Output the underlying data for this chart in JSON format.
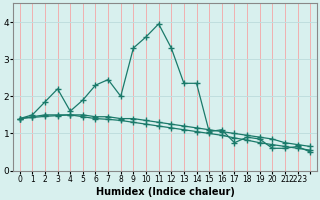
{
  "xlabel": "Humidex (Indice chaleur)",
  "background_color": "#d8f0ee",
  "grid_color_h": "#c0dede",
  "grid_color_v": "#f0b0b0",
  "line_color": "#1a7a6a",
  "xlim": [
    -0.5,
    23.5
  ],
  "ylim": [
    0,
    4.5
  ],
  "yticks": [
    0,
    1,
    2,
    3,
    4
  ],
  "xtick_positions": [
    0,
    1,
    2,
    3,
    4,
    5,
    6,
    7,
    8,
    9,
    10,
    11,
    12,
    13,
    14,
    15,
    16,
    17,
    18,
    19,
    20,
    21,
    22,
    23
  ],
  "xtick_labels": [
    "0",
    "1",
    "2",
    "3",
    "4",
    "5",
    "6",
    "7",
    "8",
    "9",
    "10",
    "11",
    "12",
    "13",
    "14",
    "15",
    "16",
    "17",
    "18",
    "19",
    "20",
    "21",
    "2223",
    ""
  ],
  "line1_x": [
    0,
    1,
    2,
    3,
    4,
    5,
    6,
    7,
    8,
    9,
    10,
    11,
    12,
    13,
    14,
    15,
    16,
    17,
    18,
    19,
    20,
    21,
    22,
    23
  ],
  "line1_y": [
    1.4,
    1.5,
    1.85,
    2.2,
    1.6,
    1.9,
    2.3,
    2.45,
    2.0,
    3.3,
    3.6,
    3.95,
    3.3,
    2.35,
    2.35,
    1.05,
    1.1,
    0.75,
    0.9,
    0.85,
    0.6,
    0.6,
    0.65,
    0.5
  ],
  "line2_x": [
    0,
    1,
    2,
    3,
    4,
    5,
    6,
    7,
    8,
    9,
    10,
    11,
    12,
    13,
    14,
    15,
    16,
    17,
    18,
    19,
    20,
    21,
    22,
    23
  ],
  "line2_y": [
    1.4,
    1.45,
    1.5,
    1.5,
    1.5,
    1.5,
    1.45,
    1.45,
    1.4,
    1.4,
    1.35,
    1.3,
    1.25,
    1.2,
    1.15,
    1.1,
    1.05,
    1.0,
    0.95,
    0.9,
    0.85,
    0.75,
    0.7,
    0.65
  ],
  "line3_x": [
    0,
    1,
    2,
    3,
    4,
    5,
    6,
    7,
    8,
    9,
    10,
    11,
    12,
    13,
    14,
    15,
    16,
    17,
    18,
    19,
    20,
    21,
    22,
    23
  ],
  "line3_y": [
    1.4,
    1.43,
    1.46,
    1.48,
    1.5,
    1.45,
    1.4,
    1.38,
    1.35,
    1.3,
    1.25,
    1.2,
    1.15,
    1.1,
    1.05,
    1.0,
    0.95,
    0.88,
    0.82,
    0.75,
    0.7,
    0.65,
    0.6,
    0.55
  ],
  "marker": "+",
  "markersize": 4,
  "linewidth": 0.9
}
